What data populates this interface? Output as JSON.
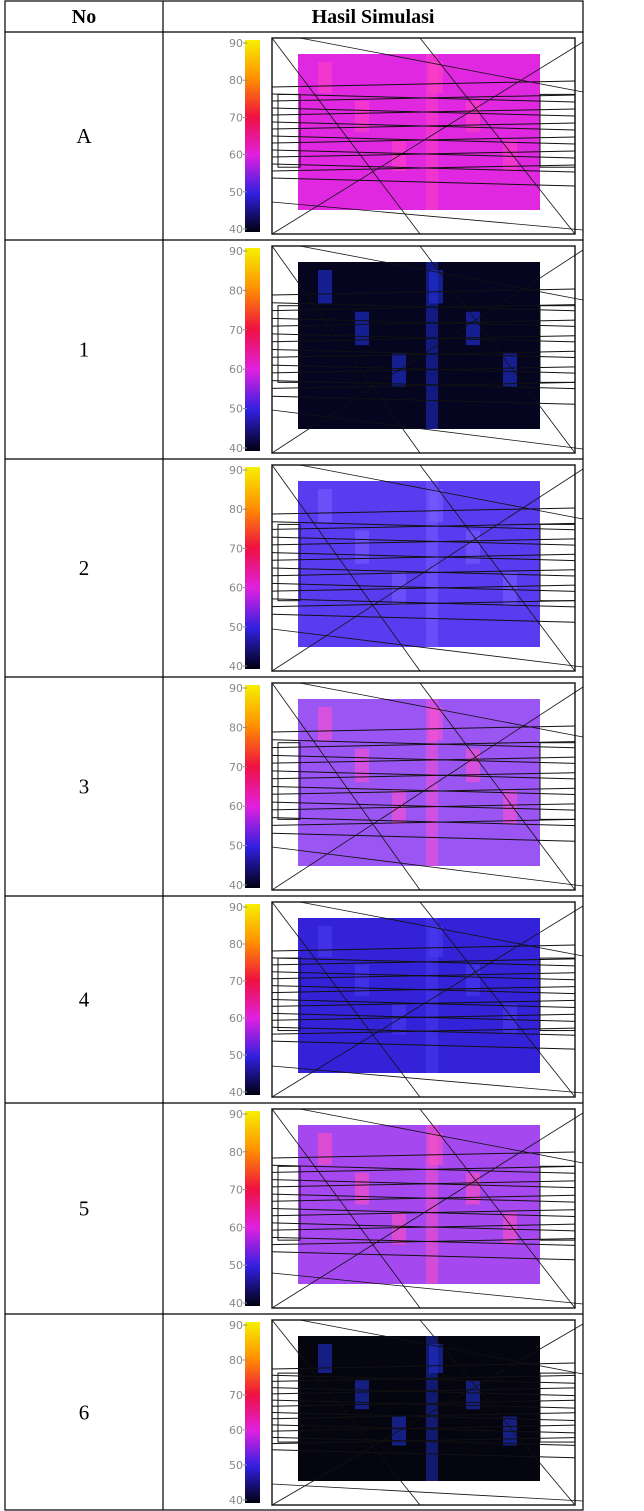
{
  "table": {
    "header": [
      "No",
      "Hasil Simulasi"
    ],
    "rows": [
      {
        "no": "A"
      },
      {
        "no": "1"
      },
      {
        "no": "2"
      },
      {
        "no": "3"
      },
      {
        "no": "4"
      },
      {
        "no": "5"
      },
      {
        "no": "6"
      }
    ]
  },
  "colorbar_ticks": [
    90,
    80,
    70,
    60,
    50,
    40
  ]
}
